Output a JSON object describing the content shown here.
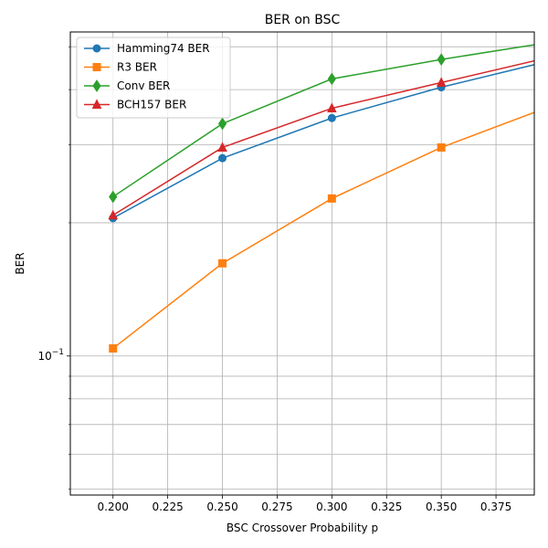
{
  "chart_data": {
    "type": "line",
    "title": "BER on BSC",
    "xlabel": "BSC Crossover Probability p",
    "ylabel": "BER",
    "yscale": "log",
    "grid": true,
    "grid_minor_y": true,
    "legend_position": "upper-left",
    "xlim": [
      0.1805,
      0.3925
    ],
    "ylim": [
      0.0485,
      0.54
    ],
    "x_ticks": [
      0.2,
      0.225,
      0.25,
      0.275,
      0.3,
      0.325,
      0.35,
      0.375
    ],
    "x_tick_labels": [
      "0.200",
      "0.225",
      "0.250",
      "0.275",
      "0.300",
      "0.325",
      "0.350",
      "0.375"
    ],
    "y_major_tick_label": "10^-1",
    "x": [
      0.2,
      0.25,
      0.3,
      0.35,
      0.4
    ],
    "series": [
      {
        "name": "Hamming74 BER",
        "color": "#1f77b4",
        "marker": "circle",
        "values": [
          0.205,
          0.28,
          0.345,
          0.405,
          0.465
        ]
      },
      {
        "name": "R3 BER",
        "color": "#ff7f0e",
        "marker": "square",
        "values": [
          0.104,
          0.162,
          0.227,
          0.296,
          0.367
        ]
      },
      {
        "name": "Conv BER",
        "color": "#2ca02c",
        "marker": "diamond",
        "values": [
          0.229,
          0.335,
          0.423,
          0.468,
          0.512
        ]
      },
      {
        "name": "BCH157 BER",
        "color": "#d62728",
        "marker": "triangle",
        "values": [
          0.208,
          0.296,
          0.363,
          0.415,
          0.474
        ]
      }
    ]
  }
}
